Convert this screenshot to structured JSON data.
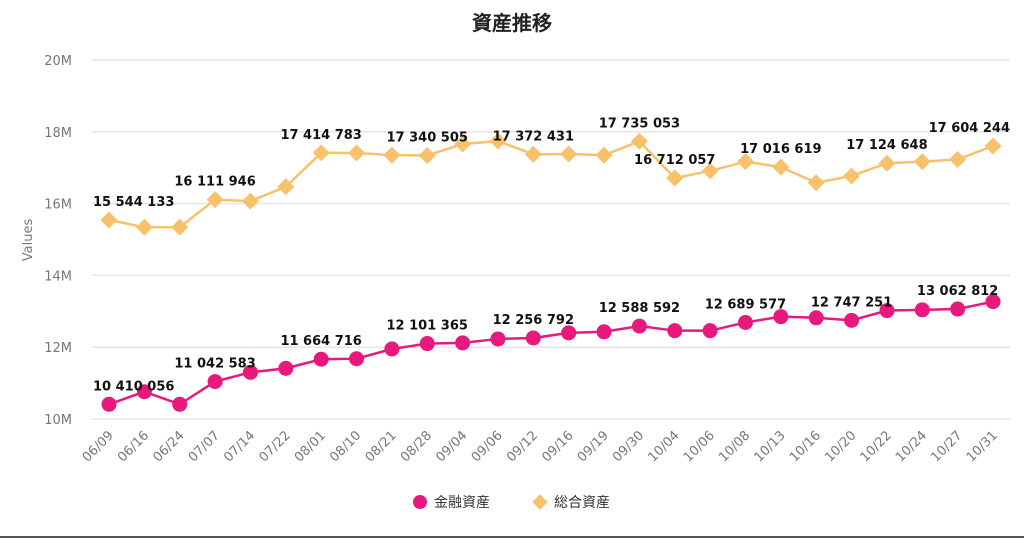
{
  "chart_data": {
    "type": "line",
    "title": "資産推移",
    "xlabel": "",
    "ylabel": "Values",
    "ylim": [
      10000000,
      20000000
    ],
    "yticks": [
      10000000,
      12000000,
      14000000,
      16000000,
      18000000,
      20000000
    ],
    "ytick_labels": [
      "10M",
      "12M",
      "14M",
      "16M",
      "18M",
      "20M"
    ],
    "grid": true,
    "legend_position": "bottom-center",
    "categories": [
      "06/09",
      "06/16",
      "06/24",
      "07/07",
      "07/14",
      "07/22",
      "08/01",
      "08/10",
      "08/21",
      "08/28",
      "09/04",
      "09/06",
      "09/12",
      "09/16",
      "09/19",
      "09/30",
      "10/04",
      "10/06",
      "10/08",
      "10/13",
      "10/16",
      "10/20",
      "10/22",
      "10/24",
      "10/27",
      "10/31"
    ],
    "series": [
      {
        "name": "金融資産",
        "color": "#e8197c",
        "marker": "circle",
        "values": [
          10410056,
          10760000,
          10410000,
          11042583,
          11300000,
          11410000,
          11664716,
          11680000,
          11950000,
          12101365,
          12120000,
          12230000,
          12256792,
          12400000,
          12430000,
          12588592,
          12460000,
          12460000,
          12689577,
          12850000,
          12820000,
          12747251,
          13020000,
          13040000,
          13062812,
          13270000
        ],
        "data_labels": [
          {
            "index": 0,
            "text": "10 410 056"
          },
          {
            "index": 3,
            "text": "11 042 583"
          },
          {
            "index": 6,
            "text": "11 664 716"
          },
          {
            "index": 9,
            "text": "12 101 365"
          },
          {
            "index": 12,
            "text": "12 256 792"
          },
          {
            "index": 15,
            "text": "12 588 592"
          },
          {
            "index": 18,
            "text": "12 689 577"
          },
          {
            "index": 21,
            "text": "12 747 251"
          },
          {
            "index": 24,
            "text": "13 062 812"
          }
        ]
      },
      {
        "name": "総合資産",
        "color": "#f8c16c",
        "marker": "diamond",
        "values": [
          15544133,
          15340000,
          15340000,
          16111946,
          16070000,
          16470000,
          17414783,
          17410000,
          17350000,
          17340505,
          17660000,
          17740000,
          17372431,
          17380000,
          17350000,
          17735053,
          16712057,
          16910000,
          17170000,
          17016619,
          16580000,
          16770000,
          17124648,
          17170000,
          17230000,
          17604244
        ],
        "data_labels": [
          {
            "index": 0,
            "text": "15 544 133"
          },
          {
            "index": 3,
            "text": "16 111 946"
          },
          {
            "index": 6,
            "text": "17 414 783"
          },
          {
            "index": 9,
            "text": "17 340 505"
          },
          {
            "index": 12,
            "text": "17 372 431"
          },
          {
            "index": 15,
            "text": "17 735 053"
          },
          {
            "index": 16,
            "text": "16 712 057"
          },
          {
            "index": 19,
            "text": "17 016 619"
          },
          {
            "index": 22,
            "text": "17 124 648"
          },
          {
            "index": 25,
            "text": "17 604 244"
          }
        ]
      }
    ]
  }
}
